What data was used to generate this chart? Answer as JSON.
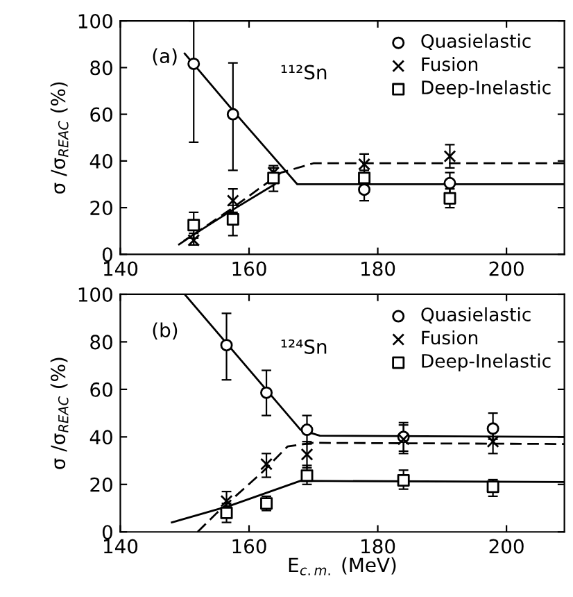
{
  "chart_data": [
    {
      "type": "scatter",
      "annotations": [
        "(a)",
        "¹¹²Sn"
      ],
      "ylabel": "σ /σ$_{REAC}$ (%)",
      "xlim": [
        140,
        209
      ],
      "ylim": [
        0,
        100
      ],
      "xticks": [
        140,
        160,
        180,
        200
      ],
      "yticks": [
        0,
        20,
        40,
        60,
        80,
        100
      ],
      "legend": "top right",
      "grid": false,
      "series": [
        {
          "name": "Quasielastic",
          "color": "#000000",
          "marker": "circle",
          "x": [
            151.4,
            157.5,
            163.8,
            177.9,
            191.2
          ],
          "values": [
            81.6,
            60,
            null,
            27.7,
            30.5
          ],
          "errors": [
            [
              48,
              100
            ],
            [
              36,
              82
            ],
            null,
            [
              23,
              32
            ],
            [
              26,
              35
            ]
          ]
        },
        {
          "name": "Fusion",
          "color": "#000000",
          "marker": "cross",
          "x": [
            151.4,
            157.5,
            163.8,
            177.9,
            191.2
          ],
          "values": [
            6,
            23,
            35,
            38.6,
            42
          ],
          "errors": [
            [
              4,
              9
            ],
            [
              18,
              28
            ],
            [
              31,
              38
            ],
            [
              33,
              43
            ],
            [
              37,
              47
            ]
          ]
        },
        {
          "name": "Deep-Inelastic",
          "color": "#000000",
          "marker": "square",
          "x": [
            151.4,
            157.5,
            163.8,
            177.9,
            191.2
          ],
          "values": [
            12.5,
            15,
            32.7,
            32.7,
            24
          ],
          "errors": [
            [
              7,
              18
            ],
            [
              8,
              21
            ],
            [
              27,
              37
            ],
            [
              28,
              36
            ],
            [
              20,
              28
            ]
          ]
        },
        {
          "type": "line",
          "color": "#000000",
          "line_style": "solid",
          "x": [
            150,
            158,
            167.5,
            209
          ],
          "values": [
            86,
            60,
            30,
            30
          ]
        },
        {
          "type": "line",
          "color": "#000000",
          "line_style": "dashed",
          "x": [
            149,
            157,
            165,
            170,
            209
          ],
          "values": [
            4,
            19,
            35,
            39,
            39
          ]
        },
        {
          "type": "line",
          "color": "#000000",
          "line_style": "solid",
          "x": [
            150,
            158,
            164
          ],
          "values": [
            6,
            20,
            30
          ]
        }
      ]
    },
    {
      "type": "scatter",
      "annotations": [
        "(b)",
        "¹²⁴Sn"
      ],
      "ylabel": "σ /σ$_{REAC}$ (%)",
      "xlabel": "E$_{c.m.}$ (MeV)",
      "xlim": [
        140,
        209
      ],
      "ylim": [
        0,
        100
      ],
      "xticks": [
        140,
        160,
        180,
        200
      ],
      "yticks": [
        0,
        20,
        40,
        60,
        80,
        100
      ],
      "legend": "top right",
      "grid": false,
      "series": [
        {
          "name": "Quasielastic",
          "color": "#000000",
          "marker": "circle",
          "x": [
            156.5,
            162.7,
            169,
            184,
            197.9
          ],
          "values": [
            78.6,
            58.6,
            43,
            40,
            43.5
          ],
          "errors": [
            [
              64,
              92
            ],
            [
              49,
              68
            ],
            [
              37,
              49
            ],
            [
              34,
              46
            ],
            [
              39,
              50
            ]
          ]
        },
        {
          "name": "Fusion",
          "color": "#000000",
          "marker": "cross",
          "x": [
            156.5,
            162.7,
            169,
            184,
            197.9
          ],
          "values": [
            13,
            28.5,
            32.6,
            39,
            38
          ],
          "errors": [
            [
              10,
              17
            ],
            [
              23,
              33
            ],
            [
              27,
              38
            ],
            [
              33,
              45
            ],
            [
              33,
              43
            ]
          ]
        },
        {
          "name": "Deep-Inelastic",
          "color": "#000000",
          "marker": "square",
          "x": [
            156.5,
            162.7,
            169,
            184,
            197.9
          ],
          "values": [
            8,
            12,
            23.7,
            21.7,
            19
          ],
          "errors": [
            [
              4,
              12
            ],
            [
              9,
              15
            ],
            [
              20,
              28
            ],
            [
              18,
              26
            ],
            [
              15,
              22
            ]
          ]
        },
        {
          "type": "line",
          "color": "#000000",
          "line_style": "solid",
          "x": [
            150,
            168,
            171,
            209
          ],
          "values": [
            100,
            43,
            40.5,
            40
          ]
        },
        {
          "type": "line",
          "color": "#000000",
          "line_style": "dashed",
          "x": [
            152,
            155,
            162,
            166,
            170,
            209
          ],
          "values": [
            0,
            8,
            25,
            36,
            37.5,
            37
          ]
        },
        {
          "type": "line",
          "color": "#000000",
          "line_style": "solid",
          "x": [
            148,
            157,
            168,
            209
          ],
          "values": [
            4,
            11,
            21.5,
            21
          ]
        }
      ]
    }
  ]
}
